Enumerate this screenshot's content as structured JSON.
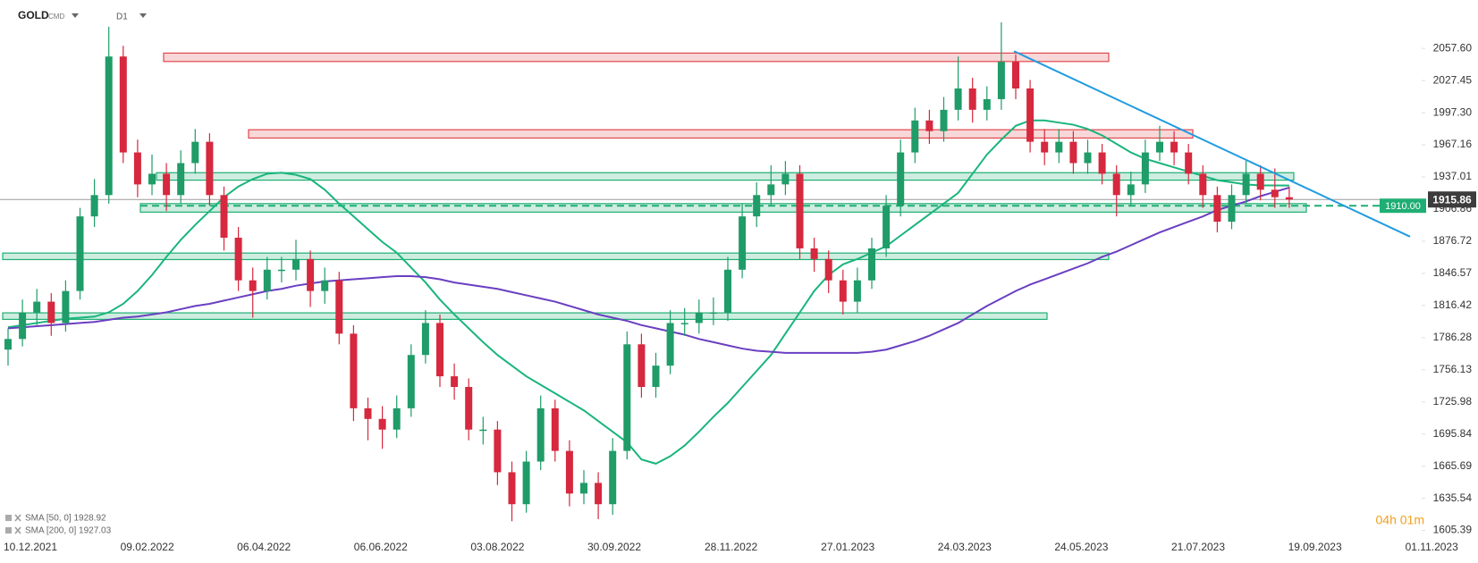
{
  "chart_data": {
    "type": "candlestick",
    "symbol": "GOLD",
    "symbol_tag": "CMD",
    "timeframe": "D1",
    "up_color": "#1f9c68",
    "down_color": "#d6283e",
    "x_labels": [
      "10.12.2021",
      "09.02.2022",
      "06.04.2022",
      "06.06.2022",
      "03.08.2022",
      "30.09.2022",
      "28.11.2022",
      "27.01.2023",
      "24.03.2023",
      "24.05.2023",
      "21.07.2023",
      "19.09.2023",
      "01.11.2023"
    ],
    "ylim": [
      1600,
      2103
    ],
    "yticks": [
      {
        "value": 2057.6,
        "label": "2057.60"
      },
      {
        "value": 2027.45,
        "label": "2027.45"
      },
      {
        "value": 1997.3,
        "label": "1997.30"
      },
      {
        "value": 1967.16,
        "label": "1967.16"
      },
      {
        "value": 1937.01,
        "label": "1937.01"
      },
      {
        "value": 1906.86,
        "label": "1906.86"
      },
      {
        "value": 1876.72,
        "label": "1876.72"
      },
      {
        "value": 1846.57,
        "label": "1846.57"
      },
      {
        "value": 1816.42,
        "label": "1816.42"
      },
      {
        "value": 1786.28,
        "label": "1786.28"
      },
      {
        "value": 1756.13,
        "label": "1756.13"
      },
      {
        "value": 1725.98,
        "label": "1725.98"
      },
      {
        "value": 1695.84,
        "label": "1695.84"
      },
      {
        "value": 1665.69,
        "label": "1665.69"
      },
      {
        "value": 1635.54,
        "label": "1635.54"
      },
      {
        "value": 1605.39,
        "label": "1605.39"
      }
    ],
    "candles": {
      "open": [
        1775,
        1785,
        1810,
        1820,
        1800,
        1830,
        1900,
        1920,
        2050,
        1960,
        1930,
        1940,
        1920,
        1950,
        1970,
        1920,
        1880,
        1840,
        1830,
        1850,
        1850,
        1860,
        1830,
        1840,
        1790,
        1720,
        1710,
        1700,
        1720,
        1770,
        1800,
        1750,
        1740,
        1700,
        1700,
        1660,
        1630,
        1670,
        1720,
        1680,
        1640,
        1650,
        1630,
        1680,
        1780,
        1740,
        1760,
        1800,
        1800,
        1810,
        1810,
        1850,
        1900,
        1920,
        1930,
        1940,
        1870,
        1860,
        1840,
        1820,
        1840,
        1870,
        1910,
        1960,
        1990,
        1980,
        2000,
        2020,
        2000,
        2010,
        2045,
        2020,
        1970,
        1960,
        1970,
        1950,
        1960,
        1940,
        1920,
        1930,
        1960,
        1970,
        1960,
        1940,
        1920,
        1895,
        1920,
        1940,
        1925,
        1918
      ],
      "high": [
        1795,
        1822,
        1832,
        1828,
        1840,
        1908,
        1935,
        2078,
        2060,
        1972,
        1958,
        1950,
        1962,
        1982,
        1978,
        1928,
        1890,
        1852,
        1862,
        1862,
        1878,
        1868,
        1852,
        1848,
        1798,
        1730,
        1722,
        1732,
        1780,
        1812,
        1808,
        1762,
        1748,
        1712,
        1708,
        1670,
        1680,
        1732,
        1728,
        1690,
        1662,
        1660,
        1692,
        1792,
        1790,
        1772,
        1812,
        1814,
        1822,
        1824,
        1862,
        1912,
        1932,
        1948,
        1952,
        1948,
        1880,
        1868,
        1850,
        1852,
        1880,
        1920,
        1972,
        2002,
        2000,
        2012,
        2050,
        2030,
        2022,
        2082,
        2052,
        2028,
        1982,
        1982,
        1980,
        1972,
        1968,
        1948,
        1942,
        1972,
        1985,
        1980,
        1968,
        1948,
        1928,
        1930,
        1952,
        1948,
        1945,
        1928
      ],
      "low": [
        1760,
        1778,
        1798,
        1788,
        1792,
        1822,
        1890,
        1912,
        1950,
        1918,
        1920,
        1905,
        1912,
        1940,
        1910,
        1868,
        1830,
        1805,
        1822,
        1838,
        1840,
        1815,
        1818,
        1780,
        1708,
        1690,
        1682,
        1692,
        1712,
        1762,
        1740,
        1728,
        1690,
        1686,
        1648,
        1614,
        1622,
        1662,
        1670,
        1628,
        1630,
        1616,
        1620,
        1672,
        1730,
        1730,
        1752,
        1788,
        1790,
        1798,
        1802,
        1842,
        1890,
        1910,
        1920,
        1860,
        1848,
        1828,
        1808,
        1810,
        1832,
        1862,
        1900,
        1950,
        1968,
        1970,
        1990,
        1988,
        1990,
        2000,
        2010,
        1960,
        1948,
        1950,
        1940,
        1940,
        1930,
        1900,
        1910,
        1922,
        1952,
        1948,
        1930,
        1908,
        1885,
        1888,
        1912,
        1915,
        1908,
        1908
      ],
      "close": [
        1785,
        1810,
        1820,
        1800,
        1830,
        1900,
        1920,
        2050,
        1960,
        1930,
        1940,
        1920,
        1950,
        1970,
        1920,
        1880,
        1840,
        1830,
        1850,
        1850,
        1860,
        1830,
        1840,
        1790,
        1720,
        1710,
        1700,
        1720,
        1770,
        1800,
        1750,
        1740,
        1700,
        1700,
        1660,
        1630,
        1670,
        1720,
        1680,
        1640,
        1650,
        1630,
        1680,
        1780,
        1740,
        1760,
        1800,
        1800,
        1810,
        1810,
        1850,
        1900,
        1920,
        1930,
        1940,
        1870,
        1860,
        1840,
        1820,
        1840,
        1870,
        1910,
        1960,
        1990,
        1980,
        2000,
        2020,
        2000,
        2010,
        2045,
        2020,
        1970,
        1960,
        1970,
        1950,
        1960,
        1940,
        1920,
        1930,
        1960,
        1970,
        1960,
        1940,
        1920,
        1895,
        1920,
        1940,
        1925,
        1918,
        1915.86
      ]
    },
    "series": [
      {
        "name": "SMA [50, 0] 1928.92",
        "color": "#19b57c",
        "values": [
          1796,
          1798,
          1800,
          1802,
          1804,
          1805,
          1806,
          1810,
          1818,
          1830,
          1845,
          1862,
          1878,
          1892,
          1905,
          1918,
          1928,
          1935,
          1940,
          1941,
          1939,
          1935,
          1925,
          1912,
          1900,
          1888,
          1876,
          1866,
          1852,
          1838,
          1822,
          1808,
          1795,
          1782,
          1770,
          1760,
          1750,
          1742,
          1734,
          1726,
          1718,
          1708,
          1698,
          1688,
          1672,
          1668,
          1675,
          1685,
          1698,
          1712,
          1725,
          1740,
          1755,
          1770,
          1790,
          1810,
          1830,
          1845,
          1855,
          1860,
          1866,
          1872,
          1882,
          1892,
          1902,
          1912,
          1922,
          1940,
          1958,
          1972,
          1985,
          1990,
          1990,
          1988,
          1986,
          1982,
          1976,
          1968,
          1960,
          1954,
          1950,
          1946,
          1942,
          1938,
          1934,
          1932,
          1930,
          1929,
          1929,
          1928.92
        ]
      },
      {
        "name": "SMA [200, 0] 1927.03",
        "color": "#6a3fc1",
        "values": [
          1795,
          1796,
          1797,
          1798,
          1799,
          1800,
          1801,
          1803,
          1805,
          1806,
          1808,
          1810,
          1813,
          1816,
          1818,
          1821,
          1824,
          1827,
          1830,
          1832,
          1835,
          1837,
          1839,
          1840,
          1841,
          1842,
          1843,
          1844,
          1844,
          1843,
          1841,
          1838,
          1836,
          1834,
          1832,
          1829,
          1826,
          1823,
          1820,
          1816,
          1812,
          1808,
          1805,
          1802,
          1798,
          1795,
          1792,
          1789,
          1785,
          1782,
          1779,
          1776,
          1774,
          1773,
          1772,
          1772,
          1772,
          1772,
          1772,
          1772,
          1773,
          1775,
          1779,
          1783,
          1788,
          1794,
          1800,
          1808,
          1816,
          1823,
          1830,
          1836,
          1841,
          1846,
          1851,
          1856,
          1862,
          1867,
          1873,
          1879,
          1885,
          1890,
          1895,
          1900,
          1906,
          1910,
          1914,
          1919,
          1923,
          1927.03
        ]
      }
    ],
    "zones": [
      [
        2045.3,
        2053.2
      ],
      [
        1973.5,
        1981.3
      ],
      [
        1934,
        1941
      ],
      [
        1904,
        1912
      ],
      [
        1859.5,
        1865.6
      ],
      [
        1803.4,
        1809.5
      ]
    ],
    "zone_colors": [
      "#e0474c",
      "#e0474c",
      "#1fae74",
      "#1fae74",
      "#1fae74",
      "#1fae74"
    ],
    "level": {
      "value": 1910,
      "label": "1910.00"
    },
    "last_price": 1915.86,
    "trendline": [
      2055,
      1881
    ],
    "timer": "04h 01m"
  }
}
